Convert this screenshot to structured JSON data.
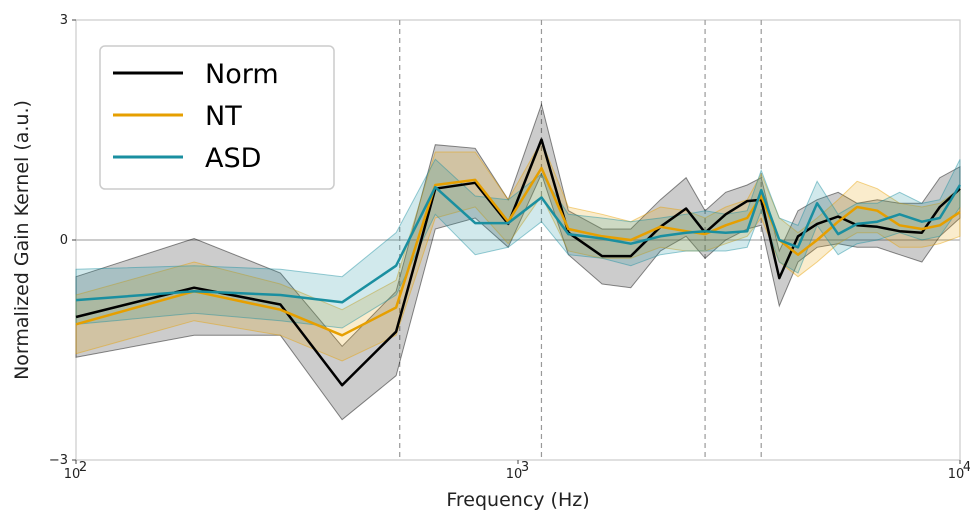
{
  "chart_data": {
    "type": "line",
    "title": "",
    "xlabel": "Frequency (Hz)",
    "ylabel": "Normalized Gain Kernel (a.u.)",
    "x_scale": "log",
    "xlim": [
      100,
      10000
    ],
    "ylim": [
      -3,
      3
    ],
    "x_ticks": [
      {
        "value": 100,
        "base": "10",
        "exp": "2"
      },
      {
        "value": 1000,
        "base": "10",
        "exp": "3"
      },
      {
        "value": 10000,
        "base": "10",
        "exp": "4"
      }
    ],
    "y_ticks": [
      {
        "value": -3,
        "label": "−3"
      },
      {
        "value": 0,
        "label": "0"
      },
      {
        "value": 3,
        "label": "3"
      }
    ],
    "reference_lines": {
      "horizontal_y": 0,
      "vertical_dashed_x": [
        540,
        1130,
        2650,
        3550
      ]
    },
    "grid": false,
    "legend_position": "top-left",
    "x": [
      100,
      185,
      290,
      400,
      530,
      650,
      800,
      950,
      1130,
      1300,
      1550,
      1800,
      2100,
      2400,
      2650,
      2950,
      3300,
      3550,
      3900,
      4300,
      4750,
      5300,
      5850,
      6500,
      7300,
      8200,
      9000,
      10000
    ],
    "series": [
      {
        "name": "Norm",
        "color": "#000000",
        "values": [
          -1.05,
          -0.65,
          -0.88,
          -1.98,
          -1.25,
          0.7,
          0.78,
          0.22,
          1.37,
          0.1,
          -0.22,
          -0.22,
          0.18,
          0.43,
          0.1,
          0.35,
          0.53,
          0.55,
          -0.52,
          0.05,
          0.22,
          0.32,
          0.2,
          0.18,
          0.12,
          0.1,
          0.45,
          0.7
        ],
        "band_lower": [
          -1.6,
          -1.3,
          -1.3,
          -2.45,
          -1.85,
          0.15,
          0.3,
          -0.1,
          0.9,
          -0.2,
          -0.6,
          -0.65,
          -0.15,
          0.05,
          -0.25,
          0.0,
          0.15,
          0.2,
          -0.9,
          -0.3,
          -0.1,
          -0.05,
          -0.1,
          -0.1,
          -0.2,
          -0.3,
          0.05,
          0.3
        ],
        "band_upper": [
          -0.5,
          0.02,
          -0.45,
          -1.45,
          -0.7,
          1.3,
          1.25,
          0.55,
          1.85,
          0.4,
          0.15,
          0.15,
          0.55,
          0.85,
          0.4,
          0.65,
          0.75,
          0.85,
          -0.15,
          0.4,
          0.55,
          0.65,
          0.5,
          0.55,
          0.5,
          0.5,
          0.85,
          1.0
        ]
      },
      {
        "name": "NT",
        "color": "#E69F00",
        "values": [
          -1.15,
          -0.7,
          -0.95,
          -1.3,
          -0.92,
          0.75,
          0.82,
          0.25,
          0.98,
          0.15,
          0.05,
          0.0,
          0.18,
          0.12,
          0.08,
          0.2,
          0.3,
          0.6,
          0.0,
          -0.2,
          0.0,
          0.25,
          0.45,
          0.4,
          0.2,
          0.15,
          0.2,
          0.38
        ],
        "band_lower": [
          -1.55,
          -1.1,
          -1.3,
          -1.65,
          -1.3,
          0.3,
          0.45,
          -0.05,
          0.6,
          -0.15,
          -0.25,
          -0.25,
          -0.1,
          -0.15,
          -0.15,
          -0.05,
          0.05,
          0.3,
          -0.3,
          -0.5,
          -0.3,
          -0.05,
          0.1,
          0.1,
          -0.1,
          -0.1,
          -0.05,
          0.05
        ],
        "band_upper": [
          -0.75,
          -0.3,
          -0.6,
          -0.95,
          -0.55,
          1.2,
          1.2,
          0.55,
          1.35,
          0.45,
          0.35,
          0.25,
          0.45,
          0.4,
          0.3,
          0.45,
          0.55,
          0.9,
          0.3,
          0.1,
          0.3,
          0.55,
          0.8,
          0.7,
          0.5,
          0.45,
          0.5,
          0.7
        ]
      },
      {
        "name": "ASD",
        "color": "#1A8FA0",
        "values": [
          -0.82,
          -0.7,
          -0.75,
          -0.85,
          -0.35,
          0.72,
          0.23,
          0.23,
          0.58,
          0.08,
          0.02,
          -0.05,
          0.05,
          0.1,
          0.12,
          0.1,
          0.12,
          0.68,
          0.0,
          -0.1,
          0.5,
          0.08,
          0.22,
          0.25,
          0.35,
          0.25,
          0.3,
          0.75
        ],
        "band_lower": [
          -1.15,
          -1.0,
          -1.1,
          -1.2,
          -0.75,
          0.35,
          -0.2,
          -0.1,
          0.25,
          -0.2,
          -0.25,
          -0.35,
          -0.2,
          -0.15,
          -0.15,
          -0.15,
          -0.1,
          0.4,
          -0.3,
          -0.45,
          0.2,
          -0.2,
          -0.05,
          0.0,
          0.1,
          0.0,
          0.05,
          0.45
        ],
        "band_upper": [
          -0.4,
          -0.35,
          -0.4,
          -0.5,
          0.1,
          1.1,
          0.6,
          0.55,
          0.9,
          0.35,
          0.3,
          0.25,
          0.3,
          0.35,
          0.4,
          0.35,
          0.4,
          0.95,
          0.3,
          0.2,
          0.8,
          0.35,
          0.5,
          0.5,
          0.65,
          0.5,
          0.55,
          1.1
        ]
      }
    ]
  }
}
